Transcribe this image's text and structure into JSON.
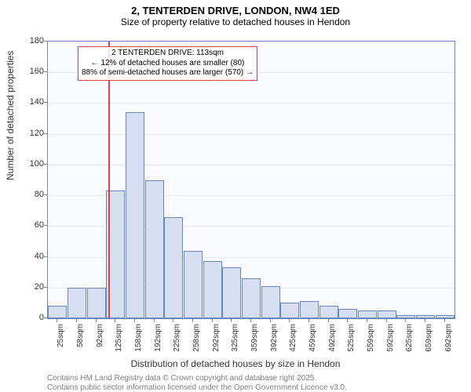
{
  "title_line1": "2, TENTERDEN DRIVE, LONDON, NW4 1ED",
  "title_line2": "Size of property relative to detached houses in Hendon",
  "y_axis_label": "Number of detached properties",
  "x_axis_label": "Distribution of detached houses by size in Hendon",
  "footer_line1": "Contains HM Land Registry data © Crown copyright and database right 2025.",
  "footer_line2": "Contains public sector information licensed under the Open Government Licence v3.0.",
  "annotation": {
    "line1": "2 TENTERDEN DRIVE: 113sqm",
    "line2": "← 12% of detached houses are smaller (80)",
    "line3": "88% of semi-detached houses are larger (570) →"
  },
  "chart": {
    "type": "histogram",
    "plot_bg": "#fafbfe",
    "border_color": "#6b87b8",
    "grid_color": "#e3e7f0",
    "bar_fill": "#d5dff1",
    "bar_border": "#6b87b8",
    "ref_line_color": "#d94545",
    "ref_line_value": 113,
    "y_min": 0,
    "y_max": 180,
    "y_tick_step": 20,
    "x_ticks": [
      "25sqm",
      "58sqm",
      "92sqm",
      "125sqm",
      "158sqm",
      "192sqm",
      "225sqm",
      "258sqm",
      "292sqm",
      "325sqm",
      "359sqm",
      "392sqm",
      "425sqm",
      "459sqm",
      "492sqm",
      "525sqm",
      "559sqm",
      "592sqm",
      "625sqm",
      "659sqm",
      "692sqm"
    ],
    "values": [
      8,
      20,
      20,
      83,
      134,
      90,
      66,
      44,
      37,
      33,
      26,
      21,
      10,
      11,
      8,
      6,
      5,
      5,
      2,
      2,
      2
    ],
    "title_fontsize": 13,
    "subtitle_fontsize": 12,
    "axis_label_fontsize": 12,
    "tick_fontsize": 11,
    "anno_fontsize": 10,
    "footer_color": "#808080"
  }
}
